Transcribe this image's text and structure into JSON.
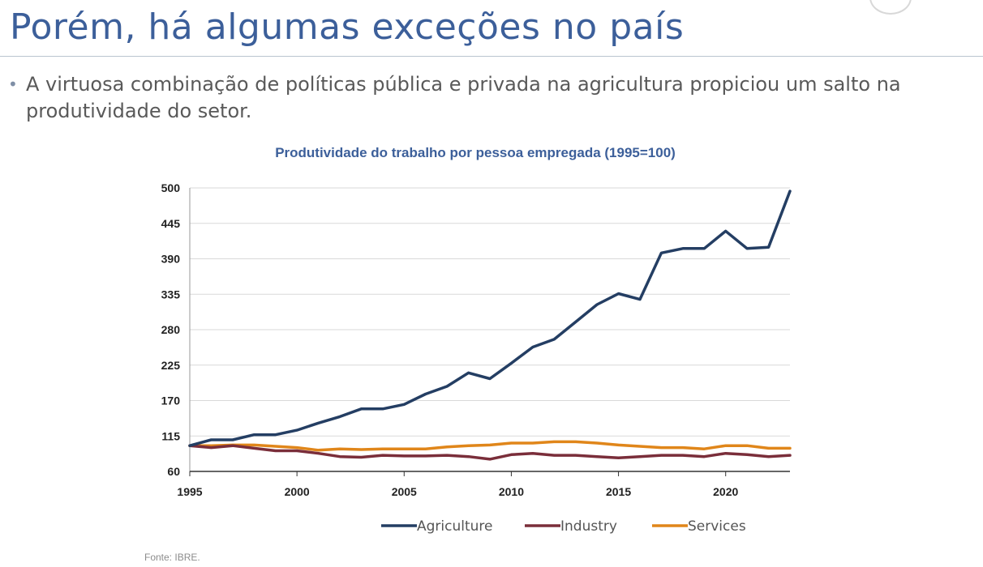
{
  "slide": {
    "title": "Porém, há algumas exceções no país",
    "bullet": "A virtuosa combinação de políticas pública e privada na agricultura propiciou um salto na produtividade do setor.",
    "source": "Fonte: IBRE."
  },
  "colors": {
    "title": "#3c5f9a",
    "agriculture": "#243e63",
    "industry": "#7a2e3a",
    "services": "#e0861a",
    "grid": "#d9d9d9"
  },
  "chart_data": {
    "type": "line",
    "title": "Produtividade do trabalho por pessoa empregada (1995=100)",
    "xlabel": "",
    "ylabel": "",
    "ylim": [
      60,
      500
    ],
    "xlim": [
      1995,
      2023
    ],
    "yticks": [
      60,
      115,
      170,
      225,
      280,
      335,
      390,
      445,
      500
    ],
    "xticks": [
      1995,
      2000,
      2005,
      2010,
      2015,
      2020
    ],
    "grid": true,
    "legend": "bottom",
    "x": [
      1995,
      1996,
      1997,
      1998,
      1999,
      2000,
      2001,
      2002,
      2003,
      2004,
      2005,
      2006,
      2007,
      2008,
      2009,
      2010,
      2011,
      2012,
      2013,
      2014,
      2015,
      2016,
      2017,
      2018,
      2019,
      2020,
      2021,
      2022,
      2023
    ],
    "series": [
      {
        "name": "Agriculture",
        "color": "#243e63",
        "values": [
          100,
          109,
          109,
          117,
          117,
          124,
          135,
          145,
          157,
          157,
          164,
          180,
          192,
          213,
          204,
          228,
          253,
          265,
          292,
          319,
          336,
          327,
          399,
          406,
          406,
          433,
          406,
          408,
          495
        ]
      },
      {
        "name": "Industry",
        "color": "#7a2e3a",
        "values": [
          100,
          97,
          100,
          96,
          92,
          92,
          88,
          83,
          82,
          85,
          84,
          84,
          85,
          83,
          79,
          86,
          88,
          85,
          85,
          83,
          81,
          83,
          85,
          85,
          83,
          88,
          86,
          83,
          85
        ]
      },
      {
        "name": "Services",
        "color": "#e0861a",
        "values": [
          100,
          100,
          101,
          101,
          99,
          97,
          93,
          95,
          94,
          95,
          95,
          95,
          98,
          100,
          101,
          104,
          104,
          106,
          106,
          104,
          101,
          99,
          97,
          97,
          95,
          100,
          100,
          96,
          96
        ]
      }
    ]
  }
}
